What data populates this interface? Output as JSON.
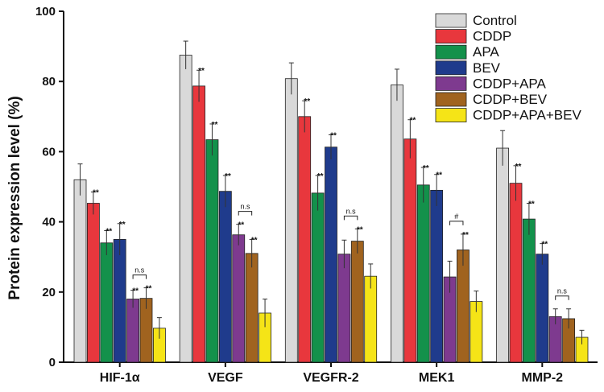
{
  "chart_data": {
    "type": "bar",
    "ylabel": "Protein expression level (%)",
    "xlabel": "",
    "ylim": [
      0,
      100
    ],
    "yticks": [
      0,
      20,
      40,
      60,
      80,
      100
    ],
    "categories": [
      "HIF-1α",
      "VEGF",
      "VEGFR-2",
      "MEK1",
      "MMP-2"
    ],
    "legend_position": "top-right",
    "series": [
      {
        "name": "Control",
        "color": "#d9d9d9",
        "values": [
          52,
          87.5,
          80.8,
          79,
          61
        ],
        "errors": [
          4.5,
          4,
          4.5,
          4.5,
          5
        ],
        "sig": [
          "",
          "",
          "",
          "",
          ""
        ]
      },
      {
        "name": "CDDP",
        "color": "#e8373d",
        "values": [
          45.3,
          78.7,
          70,
          63.6,
          51
        ],
        "errors": [
          3.2,
          4.5,
          4.5,
          5.5,
          5
        ],
        "sig": [
          "**",
          "**",
          "**",
          "**",
          "**"
        ]
      },
      {
        "name": "APA",
        "color": "#13914b",
        "values": [
          34,
          63.4,
          48.2,
          50.5,
          40.8
        ],
        "errors": [
          3.5,
          4.5,
          5,
          5,
          4.5
        ],
        "sig": [
          "**",
          "**",
          "**",
          "**",
          "**"
        ]
      },
      {
        "name": "BEV",
        "color": "#1f3b8c",
        "values": [
          35,
          48.7,
          61.3,
          49,
          30.8
        ],
        "errors": [
          4.5,
          4.5,
          3.5,
          4.5,
          3
        ],
        "sig": [
          "**",
          "**",
          "**",
          "**",
          "**"
        ]
      },
      {
        "name": "CDDP+APA",
        "color": "#7e3a8f",
        "values": [
          18,
          36.3,
          30.8,
          24.3,
          13
        ],
        "errors": [
          2.5,
          3,
          4,
          4.5,
          2.2
        ],
        "sig": [
          "**",
          "**",
          "",
          "",
          ""
        ]
      },
      {
        "name": "CDDP+BEV",
        "color": "#a0631f",
        "values": [
          18.2,
          31,
          34.5,
          32,
          12.4
        ],
        "errors": [
          3,
          4,
          3.5,
          4.5,
          2.8
        ],
        "sig": [
          "**",
          "**",
          "**",
          "**",
          ""
        ]
      },
      {
        "name": "CDDP+APA+BEV",
        "color": "#f5e417",
        "values": [
          9.7,
          14,
          24.5,
          17.3,
          7.1
        ],
        "errors": [
          3,
          4,
          3.5,
          3,
          2
        ],
        "sig": [
          "",
          "",
          "",
          "",
          ""
        ]
      }
    ],
    "brackets": [
      {
        "category": 0,
        "from_series": 4,
        "to_series": 5,
        "label": "n.s"
      },
      {
        "category": 1,
        "from_series": 4,
        "to_series": 5,
        "label": "n.s"
      },
      {
        "category": 2,
        "from_series": 4,
        "to_series": 5,
        "label": "n.s"
      },
      {
        "category": 3,
        "from_series": 4,
        "to_series": 5,
        "label": "#"
      },
      {
        "category": 4,
        "from_series": 4,
        "to_series": 5,
        "label": "n.s"
      }
    ]
  }
}
